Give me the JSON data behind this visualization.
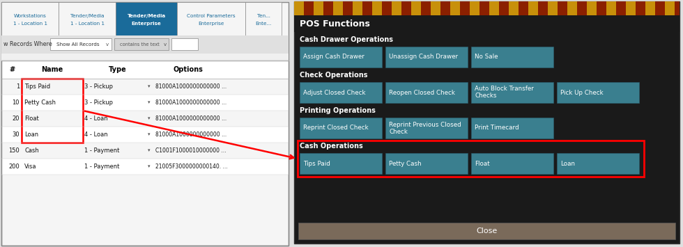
{
  "fig_width": 9.8,
  "fig_height": 3.55,
  "left_bg": "#f5f5f5",
  "right_bg": "#1a1a1a",
  "tabs": [
    "Workstations\n1 - Location 1",
    "Tender/Media\n1 - Location 1",
    "Tender/Media\nEnterprise",
    "Control Parameters\nEnterprise",
    "Ten...\nEnte..."
  ],
  "tab_widths": [
    82,
    82,
    88,
    98,
    52
  ],
  "active_tab": 2,
  "active_tab_bg": "#1a6b9a",
  "active_tab_txt": "#ffffff",
  "inactive_tab_txt": "#1a6b9a",
  "inactive_tab_bg": "#f5f5f5",
  "filter_label": "w Records Where",
  "filter_dropdown": "Show All Records",
  "filter_contains": "contains the text",
  "table_headers": [
    "#",
    "Name",
    "Type",
    "Options"
  ],
  "table_rows": [
    [
      "1",
      "Tips Paid",
      "3 - Pickup",
      "81000A1000000000000 ..."
    ],
    [
      "10",
      "Petty Cash",
      "3 - Pickup",
      "81000A1000000000000 ..."
    ],
    [
      "20",
      "Float",
      "4 - Loan",
      "81000A1000000000000 ..."
    ],
    [
      "30",
      "Loan",
      "4 - Loan",
      "81000A1000000000000 ..."
    ],
    [
      "150",
      "Cash",
      "1 - Payment",
      "C1001F1000010000000 ..."
    ],
    [
      "200",
      "Visa",
      "1 - Payment",
      "21005F3000000000140. ..."
    ]
  ],
  "pos_title": "POS Functions",
  "sections": [
    {
      "label": "Cash Drawer Operations",
      "buttons": [
        "Assign Cash Drawer",
        "Unassign Cash Drawer",
        "No Sale"
      ]
    },
    {
      "label": "Check Operations",
      "buttons": [
        "Adjust Closed Check",
        "Reopen Closed Check",
        "Auto Block Transfer\nChecks",
        "Pick Up Check"
      ]
    },
    {
      "label": "Printing Operations",
      "buttons": [
        "Reprint Closed Check",
        "Reprint Previous Closed\nCheck",
        "Print Timecard"
      ]
    },
    {
      "label": "Cash Operations",
      "buttons": [
        "Tips Paid",
        "Petty Cash",
        "Float",
        "Loan"
      ]
    }
  ],
  "btn_color": "#3a7f8f",
  "btn_text_color": "#ffffff",
  "close_btn_color": "#7a6a5a",
  "close_text": "Close",
  "red": "#ff0000",
  "white": "#ffffff",
  "gold_color": "#c8900a",
  "dark_red_color": "#8B2000"
}
